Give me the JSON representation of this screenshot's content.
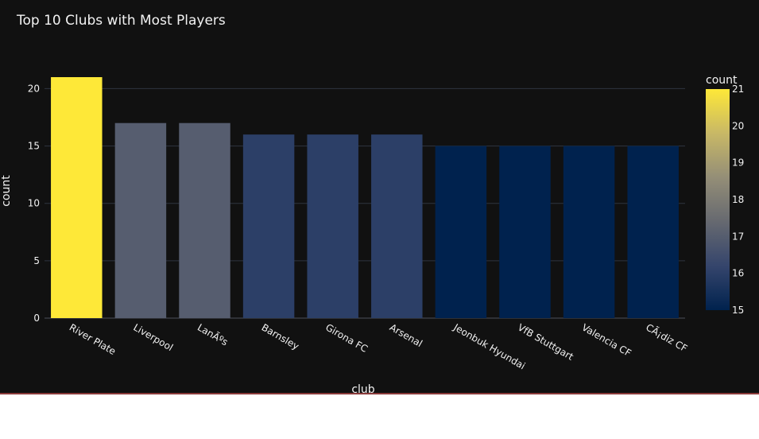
{
  "chart_data": {
    "type": "bar",
    "title": "Top 10 Clubs with Most Players",
    "xlabel": "club",
    "ylabel": "count",
    "categories": [
      "River Plate",
      "Liverpool",
      "LanÃºs",
      "Barnsley",
      "Girona FC",
      "Arsenal",
      "Jeonbuk Hyundai",
      "VfB Stuttgart",
      "Valencia CF",
      "CÃ¡diz CF"
    ],
    "values": [
      21,
      17,
      17,
      16,
      16,
      16,
      15,
      15,
      15,
      15
    ],
    "ylim": [
      0,
      21
    ],
    "yticks": [
      0,
      5,
      10,
      15,
      20
    ],
    "grid": true,
    "colorbar": {
      "title": "count",
      "ticks": [
        15,
        16,
        17,
        18,
        19,
        20,
        21
      ],
      "colorscale": [
        "#00224e",
        "#35456c",
        "#666970",
        "#948e77",
        "#c8b866",
        "#fee838"
      ]
    }
  }
}
